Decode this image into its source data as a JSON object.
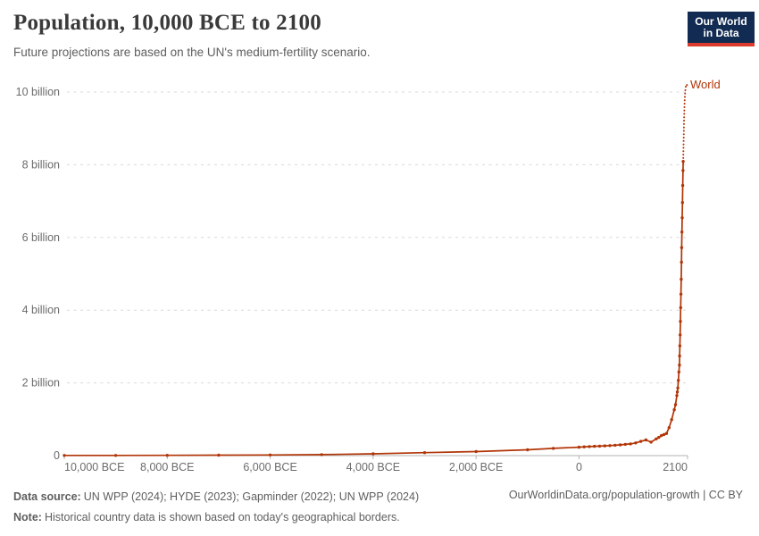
{
  "header": {
    "title": "Population, 10,000 BCE to 2100",
    "subtitle": "Future projections are based on the UN's medium-fertility scenario.",
    "logo": {
      "line1": "Our World",
      "line2": "in Data",
      "bg_color": "#122b52",
      "stripe_color": "#dc3b2d"
    }
  },
  "chart_data": {
    "type": "line",
    "title": "Population, 10,000 BCE to 2100",
    "xlabel": "",
    "ylabel": "",
    "values_unit": "billions of people",
    "grid": true,
    "legend_position": "end-of-line",
    "end_label": "World",
    "xlim": [
      -10000,
      2100
    ],
    "ylim": [
      0,
      10
    ],
    "x_ticks": [
      {
        "year": -10000,
        "label": "10,000 BCE"
      },
      {
        "year": -8000,
        "label": "8,000 BCE"
      },
      {
        "year": -6000,
        "label": "6,000 BCE"
      },
      {
        "year": -4000,
        "label": "4,000 BCE"
      },
      {
        "year": -2000,
        "label": "2,000 BCE"
      },
      {
        "year": 0,
        "label": "0"
      },
      {
        "year": 2100,
        "label": "2100"
      }
    ],
    "y_ticks": [
      {
        "value": 0,
        "label": "0"
      },
      {
        "value": 2,
        "label": "2 billion"
      },
      {
        "value": 4,
        "label": "4 billion"
      },
      {
        "value": 6,
        "label": "6 billion"
      },
      {
        "value": 8,
        "label": "8 billion"
      },
      {
        "value": 10,
        "label": "10 billion"
      }
    ],
    "colors": {
      "line": "#b13507",
      "grid": "#d9d9d9",
      "axis": "#b3b3b3",
      "tick_label": "#6b6b6b"
    },
    "series": [
      {
        "name": "World (historical estimates)",
        "style": "solid",
        "color": "#b13507",
        "points": [
          [
            -10000,
            0.004
          ],
          [
            -9000,
            0.006
          ],
          [
            -8000,
            0.008
          ],
          [
            -7000,
            0.012
          ],
          [
            -6000,
            0.017
          ],
          [
            -5000,
            0.026
          ],
          [
            -4000,
            0.05
          ],
          [
            -3000,
            0.08
          ],
          [
            -2000,
            0.11
          ],
          [
            -1000,
            0.16
          ],
          [
            -500,
            0.2
          ],
          [
            0,
            0.232
          ],
          [
            100,
            0.24
          ],
          [
            200,
            0.248
          ],
          [
            300,
            0.255
          ],
          [
            400,
            0.26
          ],
          [
            500,
            0.268
          ],
          [
            600,
            0.276
          ],
          [
            700,
            0.284
          ],
          [
            800,
            0.295
          ],
          [
            900,
            0.31
          ],
          [
            1000,
            0.323
          ],
          [
            1100,
            0.35
          ],
          [
            1200,
            0.39
          ],
          [
            1300,
            0.43
          ],
          [
            1400,
            0.37
          ],
          [
            1500,
            0.46
          ],
          [
            1550,
            0.5
          ],
          [
            1600,
            0.55
          ],
          [
            1650,
            0.58
          ],
          [
            1700,
            0.61
          ],
          [
            1750,
            0.77
          ],
          [
            1800,
            0.99
          ],
          [
            1850,
            1.26
          ],
          [
            1875,
            1.4
          ],
          [
            1900,
            1.65
          ],
          [
            1910,
            1.75
          ],
          [
            1920,
            1.86
          ],
          [
            1930,
            2.07
          ],
          [
            1940,
            2.3
          ],
          [
            1950,
            2.49
          ],
          [
            1955,
            2.74
          ],
          [
            1960,
            3.02
          ],
          [
            1965,
            3.32
          ],
          [
            1970,
            3.69
          ],
          [
            1975,
            4.07
          ],
          [
            1980,
            4.44
          ],
          [
            1985,
            4.85
          ],
          [
            1990,
            5.32
          ],
          [
            1995,
            5.72
          ],
          [
            2000,
            6.15
          ],
          [
            2005,
            6.54
          ],
          [
            2010,
            6.96
          ],
          [
            2015,
            7.43
          ],
          [
            2020,
            7.84
          ],
          [
            2024,
            8.09
          ]
        ]
      },
      {
        "name": "World (UN medium-fertility projection)",
        "style": "dotted",
        "color": "#b13507",
        "points": [
          [
            2024,
            8.09
          ],
          [
            2030,
            8.56
          ],
          [
            2035,
            8.89
          ],
          [
            2040,
            9.18
          ],
          [
            2045,
            9.44
          ],
          [
            2050,
            9.66
          ],
          [
            2055,
            9.83
          ],
          [
            2060,
            9.96
          ],
          [
            2065,
            10.06
          ],
          [
            2070,
            10.12
          ],
          [
            2075,
            10.17
          ],
          [
            2080,
            10.2
          ],
          [
            2090,
            10.21
          ],
          [
            2100,
            10.18
          ]
        ]
      }
    ]
  },
  "footer": {
    "data_source_label": "Data source:",
    "data_source": "UN WPP (2024); HYDE (2023); Gapminder (2022); UN WPP (2024)",
    "note_label": "Note:",
    "note": "Historical country data is shown based on today's geographical borders.",
    "link": "OurWorldinData.org/population-growth | CC BY"
  }
}
